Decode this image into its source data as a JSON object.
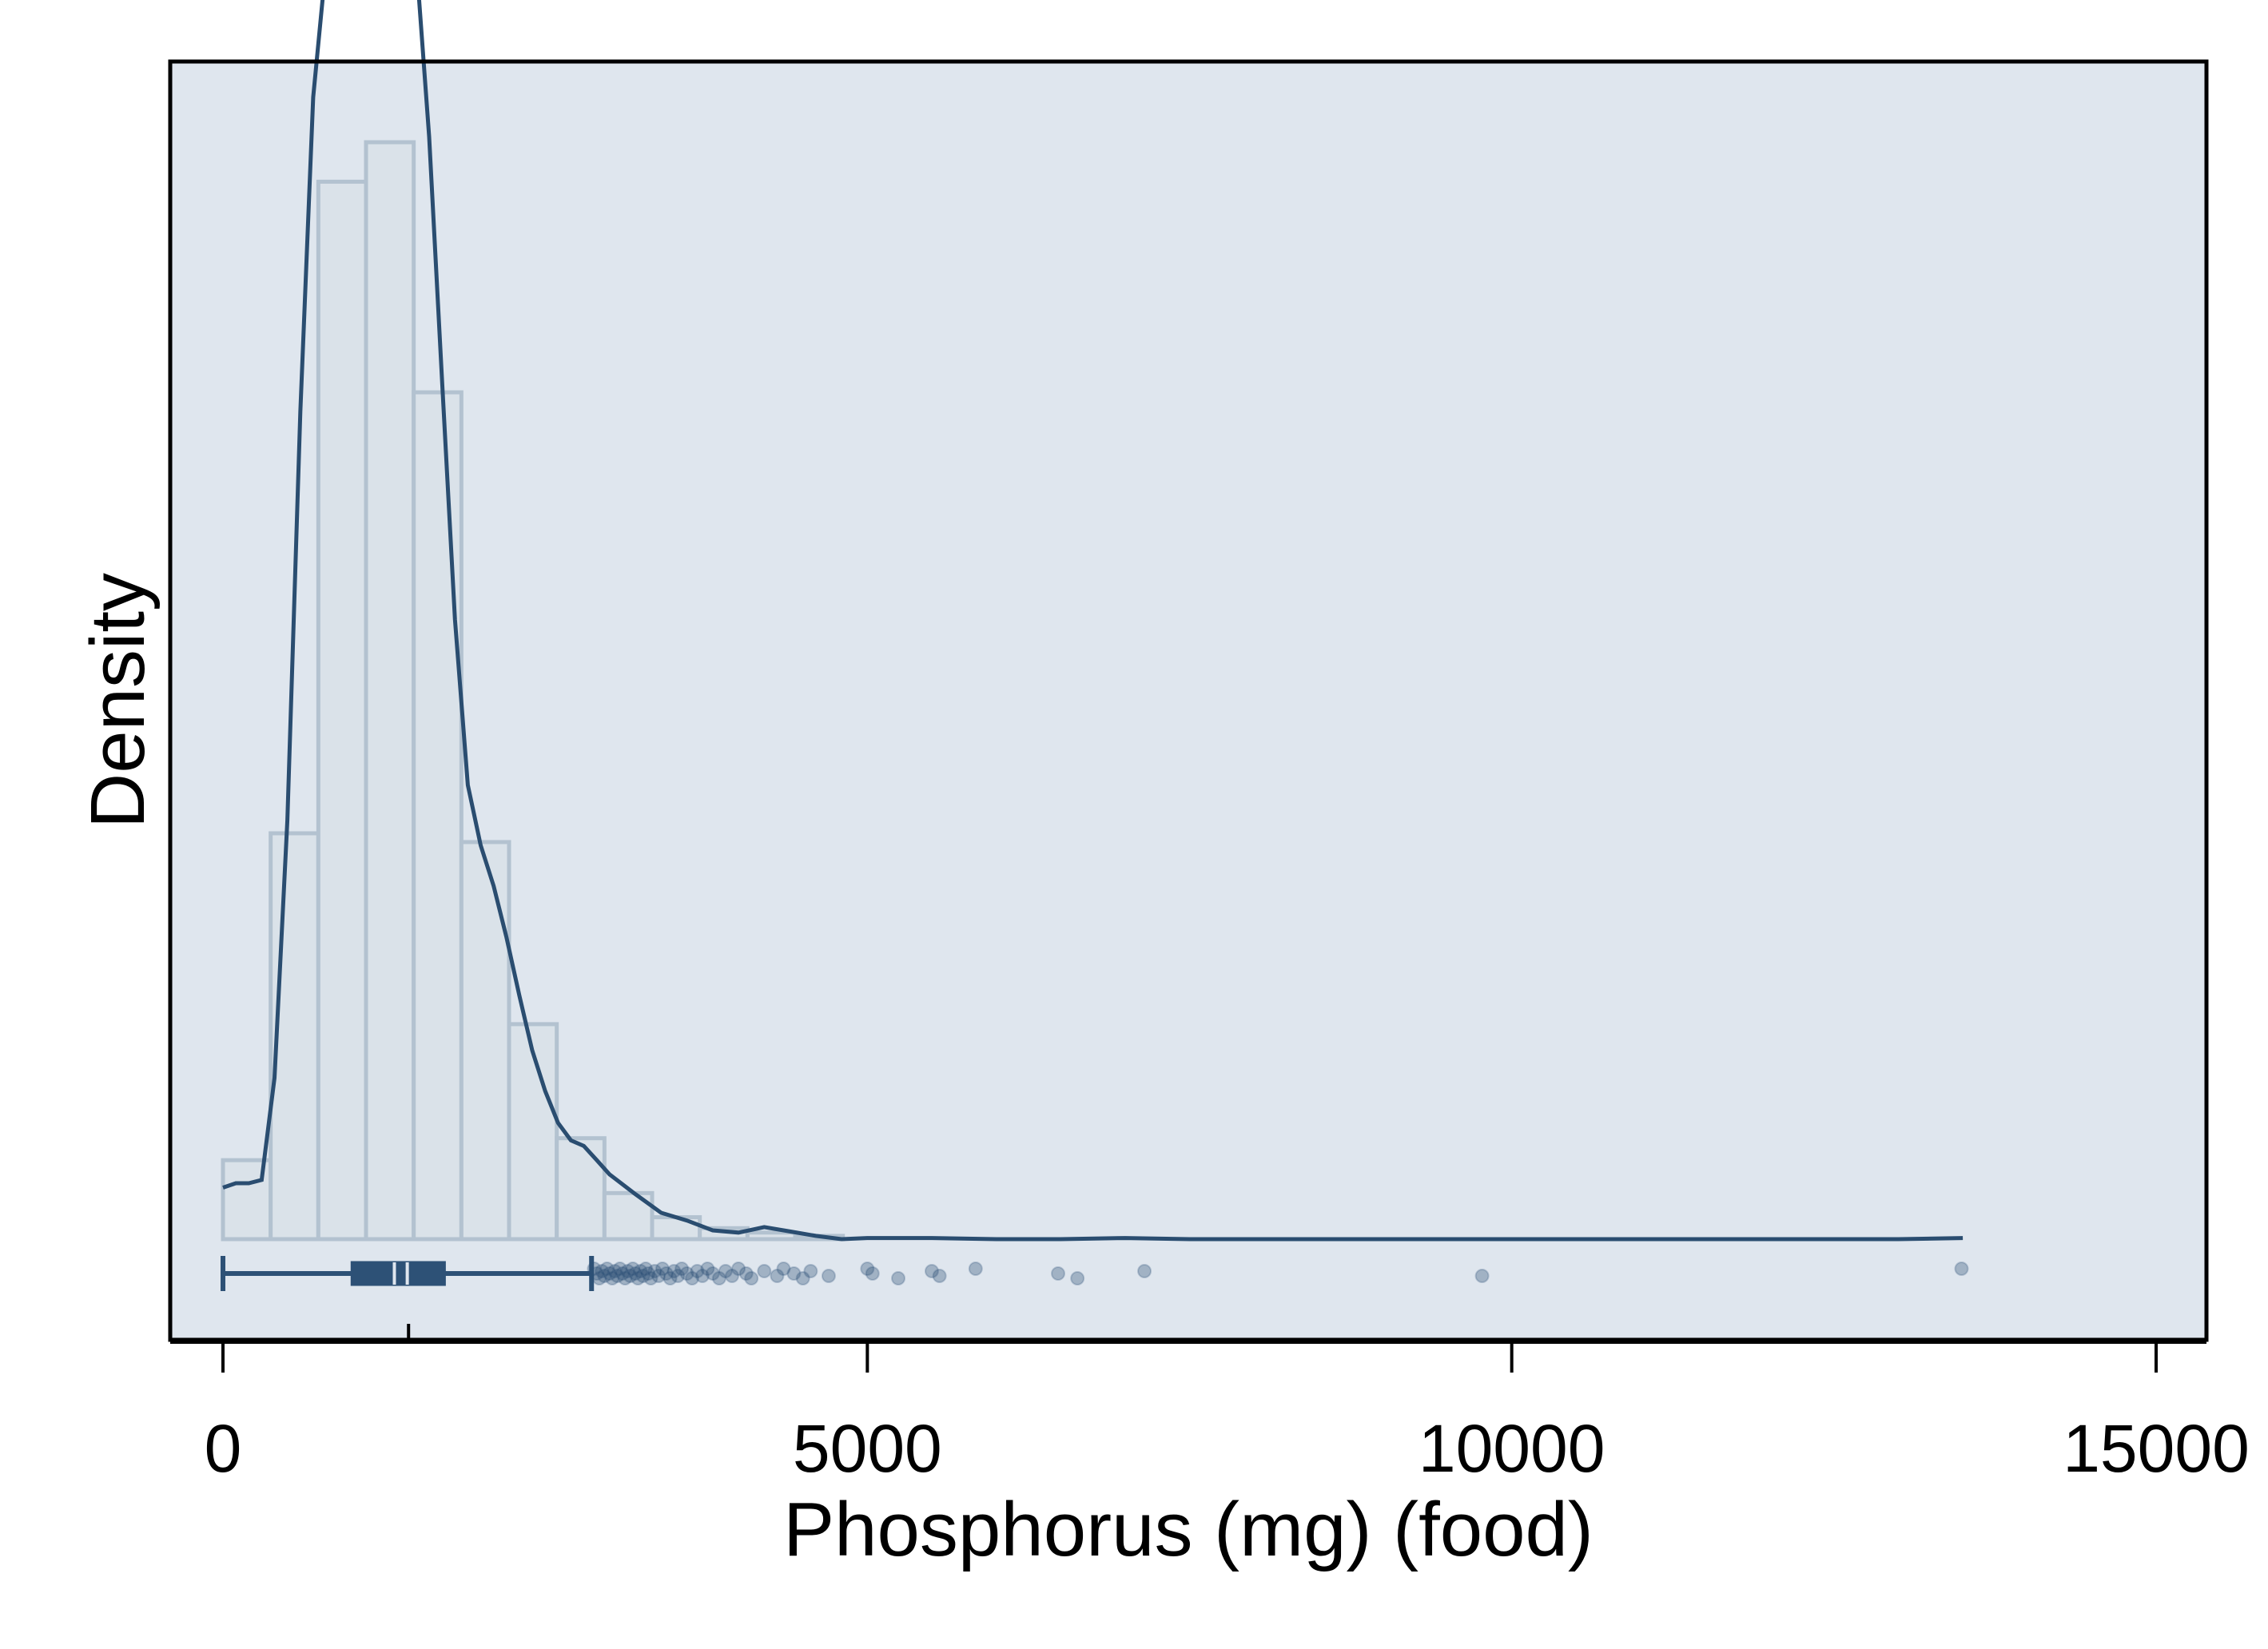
{
  "chart_data": {
    "type": "histogram",
    "xlabel": "Phosphorus (mg) (food)",
    "ylabel": "Density",
    "xlim": [
      -400,
      15400
    ],
    "x_ticks": [
      0,
      5000,
      10000,
      15000
    ],
    "x_tick_labels": [
      "0",
      "5000",
      "10000",
      "15000"
    ],
    "y_tick_labels_shown": false,
    "grid": false,
    "colors": {
      "plot_background": "#dfe6ee",
      "histogram_fill": "#dae2e9",
      "histogram_edge": "#b3c2d0",
      "density_line": "#2a4d70",
      "boxplot": "#2d5176",
      "outlier_points": "#2d5176"
    },
    "histogram": {
      "bin_width": 370,
      "bins": [
        {
          "x0": 0,
          "x1": 370,
          "density_rel": 0.072
        },
        {
          "x0": 370,
          "x1": 740,
          "density_rel": 0.37
        },
        {
          "x0": 740,
          "x1": 1110,
          "density_rel": 0.964
        },
        {
          "x0": 1110,
          "x1": 1480,
          "density_rel": 1.0
        },
        {
          "x0": 1480,
          "x1": 1850,
          "density_rel": 0.772
        },
        {
          "x0": 1850,
          "x1": 2220,
          "density_rel": 0.362
        },
        {
          "x0": 2220,
          "x1": 2590,
          "density_rel": 0.196
        },
        {
          "x0": 2590,
          "x1": 2960,
          "density_rel": 0.092
        },
        {
          "x0": 2960,
          "x1": 3330,
          "density_rel": 0.042
        },
        {
          "x0": 3330,
          "x1": 3700,
          "density_rel": 0.02
        },
        {
          "x0": 3700,
          "x1": 4070,
          "density_rel": 0.01
        },
        {
          "x0": 4070,
          "x1": 4440,
          "density_rel": 0.006
        },
        {
          "x0": 4440,
          "x1": 4810,
          "density_rel": 0.003
        }
      ]
    },
    "density_curve": {
      "x": [
        0,
        100,
        200,
        300,
        400,
        500,
        600,
        700,
        800,
        900,
        1000,
        1100,
        1150,
        1200,
        1300,
        1400,
        1500,
        1600,
        1700,
        1800,
        1900,
        2000,
        2100,
        2200,
        2300,
        2400,
        2500,
        2600,
        2700,
        2800,
        2900,
        3000,
        3200,
        3400,
        3600,
        3800,
        4000,
        4200,
        4400,
        4600,
        4800,
        5000,
        5500,
        6000,
        6500,
        7000,
        7500,
        8000,
        9000,
        10000,
        11000,
        12000,
        13000,
        13500
      ],
      "density_rel": [
        0.047,
        0.051,
        0.051,
        0.054,
        0.147,
        0.382,
        0.754,
        1.041,
        1.163,
        1.201,
        1.249,
        1.275,
        1.285,
        1.275,
        1.231,
        1.229,
        1.165,
        1.005,
        0.782,
        0.565,
        0.414,
        0.359,
        0.322,
        0.275,
        0.222,
        0.172,
        0.135,
        0.106,
        0.09,
        0.085,
        0.072,
        0.059,
        0.041,
        0.024,
        0.017,
        0.008,
        0.006,
        0.011,
        0.007,
        0.003,
        0.0,
        0.001,
        0.001,
        0.0,
        0.0,
        0.001,
        0.0,
        0.0,
        0.0,
        0.0,
        0.0,
        0.0,
        0.0,
        0.001
      ]
    },
    "boxplot": {
      "whisker_low": 0,
      "q1": 1000,
      "median": 1380,
      "median_ci": [
        1330,
        1430
      ],
      "mean": 1440,
      "q3": 1720,
      "whisker_high": 2860
    },
    "outliers": [
      2880,
      2900,
      2920,
      2940,
      2960,
      2980,
      3000,
      3020,
      3040,
      3060,
      3080,
      3100,
      3120,
      3140,
      3160,
      3180,
      3200,
      3220,
      3240,
      3260,
      3280,
      3300,
      3320,
      3350,
      3380,
      3410,
      3440,
      3470,
      3500,
      3530,
      3560,
      3600,
      3640,
      3680,
      3720,
      3760,
      3800,
      3850,
      3900,
      3950,
      4000,
      4060,
      4100,
      4200,
      4300,
      4350,
      4430,
      4500,
      4560,
      4700,
      5000,
      5040,
      5240,
      5500,
      5560,
      5840,
      6480,
      6630,
      7150,
      9770,
      13490
    ]
  }
}
